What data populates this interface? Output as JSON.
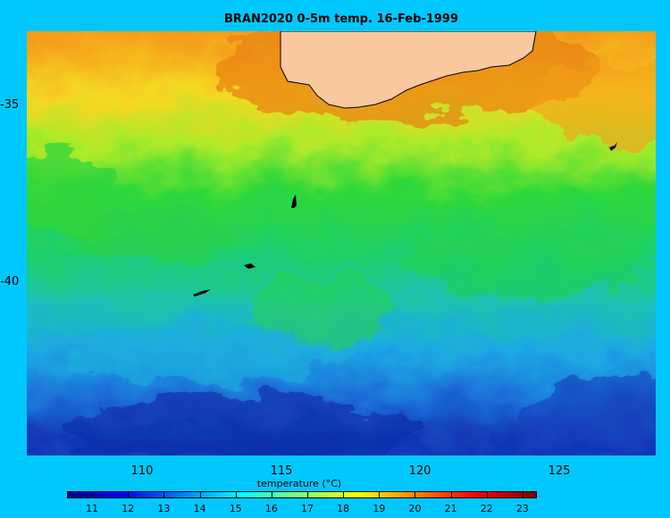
{
  "title": "BRAN2020 0-5m temp. 16-Feb-1999",
  "map": {
    "lon_range": [
      106.1,
      128.7
    ],
    "lat_range": [
      -44.8,
      -32.9
    ],
    "lat_ticks": [
      {
        "value": -35,
        "label": "-35"
      },
      {
        "value": -40,
        "label": "-40"
      }
    ],
    "lon_ticks": [
      {
        "value": 110,
        "label": "110"
      },
      {
        "value": 115,
        "label": "115"
      },
      {
        "value": 120,
        "label": "120"
      },
      {
        "value": 125,
        "label": "125"
      }
    ],
    "land_color": "#f9c89e",
    "ocean_background": "#00c8ff"
  },
  "colorbar": {
    "label": "temperature (°C)",
    "range": [
      10.3,
      23.4
    ],
    "ticks": [
      {
        "value": 11,
        "label": "11"
      },
      {
        "value": 12,
        "label": "12"
      },
      {
        "value": 13,
        "label": "13"
      },
      {
        "value": 14,
        "label": "14"
      },
      {
        "value": 15,
        "label": "15"
      },
      {
        "value": 16,
        "label": "16"
      },
      {
        "value": 17,
        "label": "17"
      },
      {
        "value": 18,
        "label": "18"
      },
      {
        "value": 19,
        "label": "19"
      },
      {
        "value": 20,
        "label": "20"
      },
      {
        "value": 21,
        "label": "21"
      },
      {
        "value": 22,
        "label": "22"
      },
      {
        "value": 23,
        "label": "23"
      }
    ],
    "colormap": "jet"
  }
}
